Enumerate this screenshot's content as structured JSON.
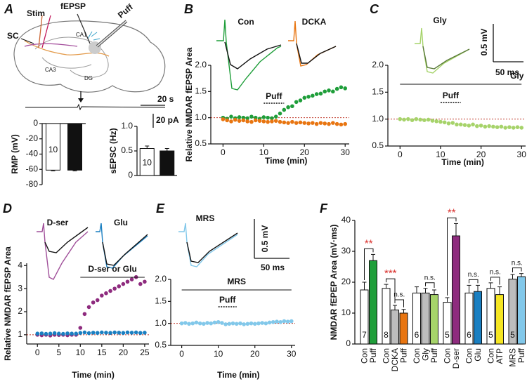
{
  "panel_labels": [
    "A",
    "B",
    "C",
    "D",
    "E",
    "F"
  ],
  "diagram": {
    "labels": [
      "Stim",
      "fEPSP",
      "Puff",
      "SC",
      "CA1",
      "CA3",
      "DG"
    ],
    "scale_time": "20 s",
    "scale_current": "20 pA"
  },
  "chart_data": [
    {
      "type": "bar",
      "categories": [
        null,
        null
      ],
      "values": [
        -61,
        -61
      ],
      "errors": [
        1,
        1
      ],
      "colors": [
        "#ffffff",
        "#111111"
      ],
      "ylabel": "RMP (mV)",
      "ylim": [
        -80,
        0
      ],
      "yticks": [
        0,
        -20,
        -40,
        -60,
        -80
      ],
      "n_label": "10"
    },
    {
      "type": "bar",
      "categories": [
        null,
        null
      ],
      "values": [
        0.55,
        0.5
      ],
      "errors": [
        0.05,
        0.05
      ],
      "colors": [
        "#ffffff",
        "#111111"
      ],
      "ylabel": "sEPSC (Hz)",
      "ylim": [
        0,
        1
      ],
      "yticks": [
        0,
        0.5,
        {
          "value": 1,
          "label": "1.0"
        }
      ],
      "n_label": "10"
    },
    {
      "type": "line",
      "ylabel": "Relative NMDAR fEPSP Area",
      "xlabel": "Time (min)",
      "xlim": [
        -3,
        31
      ],
      "ylim": [
        0.5,
        2
      ],
      "xticks": [
        0,
        10,
        20,
        30
      ],
      "yticks": [
        0.5,
        {
          "value": 1,
          "label": "1.0"
        },
        1.5,
        {
          "value": 2,
          "label": "2.0"
        }
      ],
      "baseline": 1,
      "puff": {
        "text": "Puff",
        "start": 10,
        "end": 15
      },
      "x": [
        0,
        1,
        2,
        3,
        4,
        5,
        6,
        7,
        8,
        9,
        10,
        11,
        12,
        13,
        14,
        15,
        16,
        17,
        18,
        19,
        20,
        21,
        22,
        23,
        24,
        25,
        26,
        27,
        28,
        29,
        30
      ],
      "series": [
        {
          "name": "Con",
          "color": "#1f9e3a",
          "values": [
            1.0,
            0.98,
            1.02,
            0.99,
            1.01,
            1.0,
            0.99,
            1.02,
            1.0,
            0.98,
            1.01,
            1.0,
            0.99,
            1.02,
            1.08,
            1.15,
            1.2,
            1.22,
            1.3,
            1.33,
            1.38,
            1.4,
            1.42,
            1.45,
            1.46,
            1.5,
            1.52,
            1.5,
            1.55,
            1.58,
            1.56
          ]
        },
        {
          "name": "DCKA",
          "color": "#e87511",
          "values": [
            0.97,
            0.95,
            0.93,
            0.96,
            0.94,
            0.95,
            0.93,
            0.92,
            0.95,
            0.94,
            0.93,
            0.92,
            0.93,
            0.94,
            0.92,
            0.91,
            0.9,
            0.92,
            0.9,
            0.91,
            0.9,
            0.89,
            0.9,
            0.88,
            0.9,
            0.89,
            0.88,
            0.9,
            0.88,
            0.87,
            0.88
          ]
        }
      ]
    },
    {
      "type": "line",
      "xlabel": "Time (min)",
      "xlim": [
        -3,
        31
      ],
      "ylim": [
        0.5,
        2
      ],
      "xticks": [
        0,
        10,
        20,
        30
      ],
      "yticks": [
        0.5,
        {
          "value": 1,
          "label": "1.0"
        },
        1.5,
        {
          "value": 2,
          "label": "2.0"
        }
      ],
      "baseline": 1,
      "puff": {
        "text": "Puff",
        "start": 10,
        "end": 15
      },
      "drug": {
        "text": "Gly",
        "start": 0,
        "end": 30
      },
      "scale_y": "0.5 mV",
      "scale_x": "50 ms",
      "x": [
        0,
        1,
        2,
        3,
        4,
        5,
        6,
        7,
        8,
        9,
        10,
        11,
        12,
        13,
        14,
        15,
        16,
        17,
        18,
        19,
        20,
        21,
        22,
        23,
        24,
        25,
        26,
        27,
        28,
        29,
        30
      ],
      "series": [
        {
          "name": "Gly",
          "color": "#a6d36a",
          "values": [
            1.0,
            0.99,
            1.0,
            0.98,
            1.0,
            0.99,
            0.98,
            0.99,
            0.97,
            0.96,
            0.95,
            0.94,
            0.92,
            0.93,
            0.9,
            0.9,
            0.89,
            0.88,
            0.9,
            0.87,
            0.88,
            0.86,
            0.87,
            0.86,
            0.85,
            0.86,
            0.84,
            0.85,
            0.84,
            0.85,
            0.84
          ]
        }
      ]
    },
    {
      "type": "line",
      "ylabel": "Relative NMDAR fEPSP Area",
      "xlabel": "Time (min)",
      "xlim": [
        -2.5,
        26
      ],
      "ylim": [
        0.6,
        4.1
      ],
      "xticks": [
        0,
        5,
        10,
        15,
        20,
        25
      ],
      "yticks": [
        1,
        2,
        3,
        4
      ],
      "baseline": 1,
      "drug": {
        "text": "D-ser or Glu",
        "start": 10,
        "end": 25
      },
      "x": [
        0,
        1,
        2,
        3,
        4,
        5,
        6,
        7,
        8,
        9,
        10,
        11,
        12,
        13,
        14,
        15,
        16,
        17,
        18,
        19,
        20,
        21,
        22,
        23,
        24,
        25
      ],
      "series": [
        {
          "name": "D-ser",
          "color": "#8e2b7e",
          "values": [
            1.0,
            0.98,
            1.0,
            0.97,
            1.0,
            0.99,
            1.0,
            0.98,
            1.0,
            1.0,
            1.3,
            1.9,
            2.2,
            2.4,
            2.5,
            2.7,
            2.8,
            2.9,
            3.0,
            3.1,
            3.2,
            3.3,
            3.4,
            3.5,
            3.2,
            3.3
          ]
        },
        {
          "name": "Glu",
          "color": "#1a7fc1",
          "values": [
            1.05,
            1.06,
            1.04,
            1.05,
            1.07,
            1.05,
            1.04,
            1.06,
            1.05,
            1.05,
            1.08,
            1.1,
            1.07,
            1.09,
            1.08,
            1.1,
            1.09,
            1.08,
            1.1,
            1.09,
            1.08,
            1.1,
            1.09,
            1.1,
            1.08,
            1.09
          ]
        }
      ]
    },
    {
      "type": "line",
      "xlabel": "Time (min)",
      "xlim": [
        -3,
        31
      ],
      "ylim": [
        0.5,
        2
      ],
      "xticks": [
        0,
        10,
        20,
        30
      ],
      "yticks": [
        0.5,
        {
          "value": 1,
          "label": "1.0"
        },
        1.5,
        {
          "value": 2,
          "label": "2.0"
        }
      ],
      "baseline": 1,
      "puff": {
        "text": "Puff",
        "start": 10,
        "end": 15
      },
      "drug": {
        "text": "MRS",
        "start": 0,
        "end": 30
      },
      "scale_y": "0.5 mV",
      "scale_x": "50 ms",
      "x": [
        0,
        1,
        2,
        3,
        4,
        5,
        6,
        7,
        8,
        9,
        10,
        11,
        12,
        13,
        14,
        15,
        16,
        17,
        18,
        19,
        20,
        21,
        22,
        23,
        24,
        25,
        26,
        27,
        28,
        29,
        30
      ],
      "series": [
        {
          "name": "MRS",
          "color": "#82c8ea",
          "values": [
            1.0,
            1.01,
            0.99,
            1.0,
            1.02,
            1.0,
            0.99,
            1.01,
            1.0,
            1.02,
            1.03,
            1.01,
            0.98,
            0.99,
            1.0,
            0.99,
            1.0,
            0.98,
            0.99,
            1.0,
            0.99,
            1.0,
            1.01,
            1.0,
            1.02,
            1.03,
            1.04,
            1.03,
            1.05,
            1.04,
            1.05
          ]
        }
      ]
    },
    {
      "type": "bar",
      "ylabel": "NMDAR fEPEP Area (mV·ms)",
      "ylim": [
        0,
        40
      ],
      "yticks": [
        0,
        10,
        20,
        30,
        40
      ],
      "categories": [
        "Con",
        "Puff",
        "Con",
        "DCKA",
        "Puff",
        "Con",
        "Gly",
        "Puff",
        "Con",
        "D-ser",
        "Con",
        "Glu",
        "Con",
        "ATP",
        "MRS",
        "Puff"
      ],
      "values": [
        17.5,
        27,
        18,
        11,
        10,
        16.5,
        16.5,
        16,
        13.5,
        35,
        16.5,
        17,
        18,
        16,
        21,
        21.8
      ],
      "errors": [
        2.5,
        2,
        1.3,
        1.5,
        1.2,
        2,
        1.5,
        1.5,
        1.5,
        4,
        2.5,
        2,
        1.8,
        2.5,
        1.5,
        1
      ],
      "colors": [
        "#ffffff",
        "#1f9e3a",
        "#ffffff",
        "#bdbdbd",
        "#e87511",
        "#ffffff",
        "#bdbdbd",
        "#a6d36a",
        "#ffffff",
        "#8e2b7e",
        "#ffffff",
        "#1a7fc1",
        "#ffffff",
        "#f5e623",
        "#bdbdbd",
        "#82c8ea"
      ],
      "n_labels": [
        "7",
        null,
        "8",
        null,
        null,
        "6",
        null,
        null,
        "5",
        null,
        "6",
        null,
        "5",
        null,
        "5",
        null
      ],
      "significance": [
        "**",
        null,
        "***",
        "n.s.",
        null,
        null,
        "n.s.",
        null,
        "**",
        null,
        "n.s.",
        null,
        "n.s.",
        null,
        "n.s.",
        null
      ]
    }
  ]
}
